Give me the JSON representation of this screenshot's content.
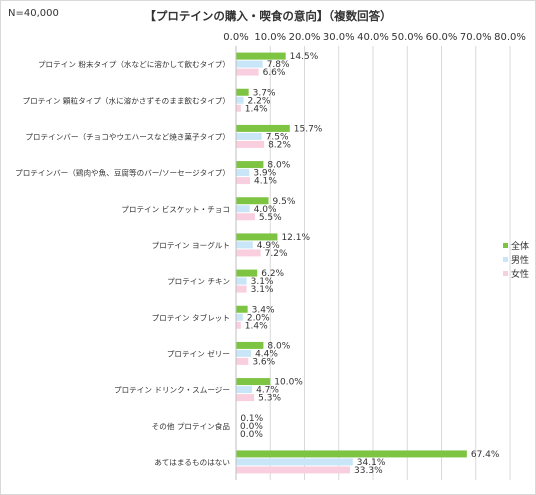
{
  "header": {
    "n_label": "N=40,000",
    "title": "【プロテインの購入・喫食の意向】（複数回答）"
  },
  "chart_data": {
    "type": "bar",
    "orientation": "horizontal",
    "title": "【プロテインの購入・喫食の意向】（複数回答）",
    "xlim": [
      0,
      80
    ],
    "x_ticks": [
      "0.0%",
      "10.0%",
      "20.0%",
      "30.0%",
      "40.0%",
      "50.0%",
      "60.0%",
      "70.0%",
      "80.0%"
    ],
    "grid": true,
    "legend_position": "right",
    "categories": [
      "プロテイン 粉末タイプ（水などに溶かして飲むタイプ）",
      "プロテイン 顆粒タイプ（水に溶かさずそのまま飲むタイプ）",
      "プロテインバー（チョコやウエハースなど焼き菓子タイプ）",
      "プロテインバー（鶏肉や魚、豆腐等のバー/ソーセージタイプ）",
      "プロテイン ビスケット・チョコ",
      "プロテイン ヨーグルト",
      "プロテイン チキン",
      "プロテイン タブレット",
      "プロテイン ゼリー",
      "プロテイン ドリンク・スムージー",
      "その他 プロテイン食品",
      "あてはまるものはない"
    ],
    "series": [
      {
        "name": "全体",
        "color": "#7dc442",
        "values": [
          14.5,
          3.7,
          15.7,
          8.0,
          9.5,
          12.1,
          6.2,
          3.4,
          8.0,
          10.0,
          0.1,
          67.4
        ],
        "labels": [
          "14.5%",
          "3.7%",
          "15.7%",
          "8.0%",
          "9.5%",
          "12.1%",
          "6.2%",
          "3.4%",
          "8.0%",
          "10.0%",
          "0.1%",
          "67.4%"
        ]
      },
      {
        "name": "男性",
        "color": "#c9e6f8",
        "values": [
          7.8,
          2.2,
          7.5,
          3.9,
          4.0,
          4.9,
          3.1,
          2.0,
          4.4,
          4.7,
          0.0,
          34.1
        ],
        "labels": [
          "7.8%",
          "2.2%",
          "7.5%",
          "3.9%",
          "4.0%",
          "4.9%",
          "3.1%",
          "2.0%",
          "4.4%",
          "4.7%",
          "0.0%",
          "34.1%"
        ]
      },
      {
        "name": "女性",
        "color": "#f9cfdf",
        "values": [
          6.6,
          1.4,
          8.2,
          4.1,
          5.5,
          7.2,
          3.1,
          1.4,
          3.6,
          5.3,
          0.0,
          33.3
        ],
        "labels": [
          "6.6%",
          "1.4%",
          "8.2%",
          "4.1%",
          "5.5%",
          "7.2%",
          "3.1%",
          "1.4%",
          "3.6%",
          "5.3%",
          "0.0%",
          "33.3%"
        ]
      }
    ]
  }
}
